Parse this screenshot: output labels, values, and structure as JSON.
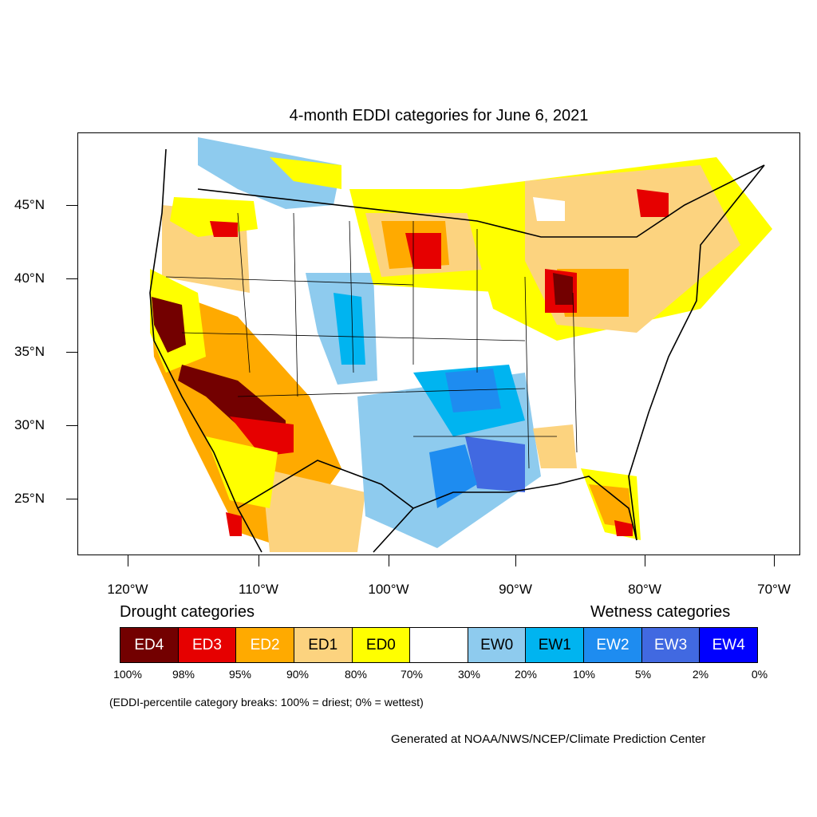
{
  "title": "4-month EDDI categories for June 6, 2021",
  "lat_labels": [
    "45°N",
    "40°N",
    "35°N",
    "30°N",
    "25°N"
  ],
  "lon_labels": [
    "120°W",
    "110°W",
    "100°W",
    "90°W",
    "80°W",
    "70°W"
  ],
  "legend": {
    "drought_heading": "Drought categories",
    "wetness_heading": "Wetness categories",
    "categories": [
      {
        "label": "ED4",
        "color": "#730000",
        "text_color": "#ffffff"
      },
      {
        "label": "ED3",
        "color": "#e60000",
        "text_color": "#ffffff"
      },
      {
        "label": "ED2",
        "color": "#ffaa00",
        "text_color": "#ffffff"
      },
      {
        "label": "ED1",
        "color": "#fcd37f",
        "text_color": "#000000"
      },
      {
        "label": "ED0",
        "color": "#ffff00",
        "text_color": "#000000"
      },
      {
        "label": "",
        "color": "#ffffff",
        "text_color": "#000000"
      },
      {
        "label": "EW0",
        "color": "#8ecbee",
        "text_color": "#000000"
      },
      {
        "label": "EW1",
        "color": "#00b4f0",
        "text_color": "#000000"
      },
      {
        "label": "EW2",
        "color": "#1e8cf0",
        "text_color": "#ffffff"
      },
      {
        "label": "EW3",
        "color": "#4169e1",
        "text_color": "#ffffff"
      },
      {
        "label": "EW4",
        "color": "#0000ff",
        "text_color": "#ffffff"
      }
    ],
    "percentiles": [
      "100%",
      "98%",
      "95%",
      "90%",
      "80%",
      "70%",
      "30%",
      "20%",
      "10%",
      "5%",
      "2%",
      "0%"
    ]
  },
  "note": "(EDDI-percentile category breaks: 100% = driest; 0% = wettest)",
  "credit": "Generated at NOAA/NWS/NCEP/Climate Prediction Center"
}
